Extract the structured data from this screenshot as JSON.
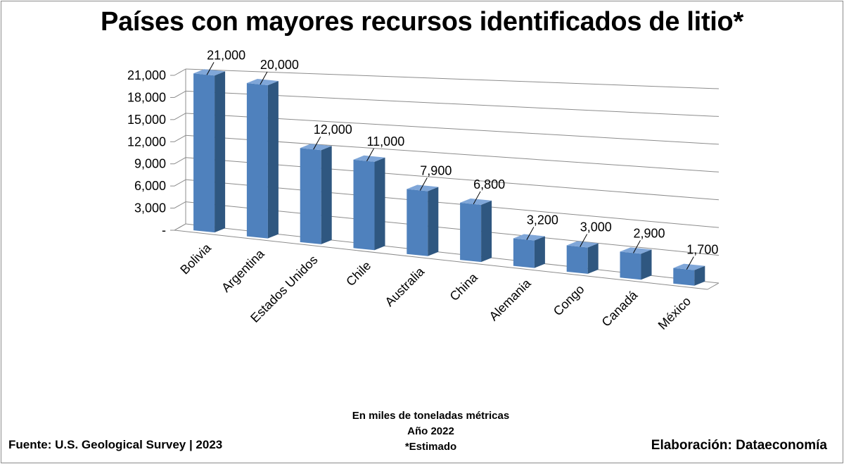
{
  "chart_data": {
    "type": "bar",
    "title": "Países con mayores recursos identificados de litio*",
    "categories": [
      "Bolivia",
      "Argentina",
      "Estados Unidos",
      "Chile",
      "Australia",
      "China",
      "Alemania",
      "Congo",
      "Canadá",
      "México"
    ],
    "values": [
      21000,
      20000,
      12000,
      11000,
      7900,
      6800,
      3200,
      3000,
      2900,
      1700
    ],
    "data_labels": [
      "21,000",
      "20,000",
      "12,000",
      "11,000",
      "7,900",
      "6,800",
      "3,200",
      "3,000",
      "2,900",
      "1,700"
    ],
    "yticks": [
      0,
      3000,
      6000,
      9000,
      12000,
      15000,
      18000,
      21000
    ],
    "ytick_labels": [
      "-",
      "3,000",
      "6,000",
      "9,000",
      "12,000",
      "15,000",
      "18,000",
      "21,000"
    ],
    "ylim": [
      0,
      21000
    ],
    "grid": true,
    "legend": "none",
    "style": "3d-column",
    "colors": {
      "front": "#4f81bd",
      "side": "#2f5780",
      "top": "#7fa6d8",
      "grid": "#8c8c8c"
    }
  },
  "notes": {
    "units_line": "En miles de toneladas métricas",
    "year_line": "Año 2022",
    "estimate_line": "*Estimado",
    "source": "Fuente: U.S. Geological Survey | 2023",
    "credit": "Elaboración: Dataeconomía"
  }
}
